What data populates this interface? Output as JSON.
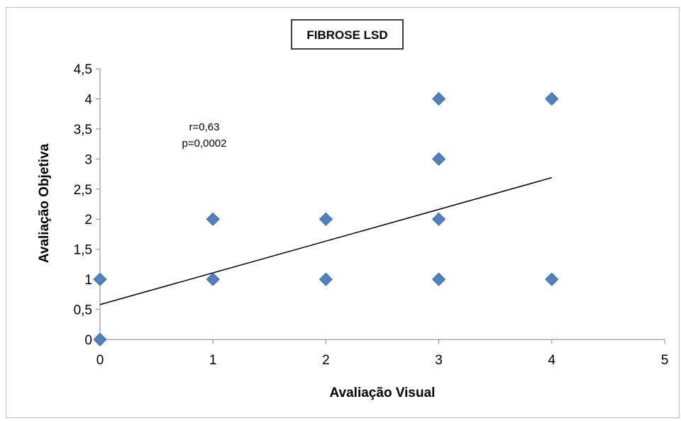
{
  "chart_data": {
    "type": "scatter",
    "title": "FIBROSE LSD",
    "xlabel": "Avaliação Visual",
    "ylabel": "Avaliação Objetiva",
    "xlim": [
      0,
      5
    ],
    "ylim": [
      0,
      4.5
    ],
    "x_ticks": [
      "0",
      "1",
      "2",
      "3",
      "4",
      "5"
    ],
    "y_ticks": [
      "0",
      "0,5",
      "1",
      "1,5",
      "2",
      "2,5",
      "3",
      "3,5",
      "4",
      "4,5"
    ],
    "x_tick_values": [
      0,
      1,
      2,
      3,
      4,
      5
    ],
    "y_tick_values": [
      0,
      0.5,
      1,
      1.5,
      2,
      2.5,
      3,
      3.5,
      4,
      4.5
    ],
    "grid": false,
    "marker_color": "#4f81bd",
    "points": [
      {
        "x": 0,
        "y": 0
      },
      {
        "x": 0,
        "y": 1
      },
      {
        "x": 1,
        "y": 1
      },
      {
        "x": 1,
        "y": 2
      },
      {
        "x": 2,
        "y": 1
      },
      {
        "x": 2,
        "y": 2
      },
      {
        "x": 3,
        "y": 1
      },
      {
        "x": 3,
        "y": 2
      },
      {
        "x": 3,
        "y": 3
      },
      {
        "x": 3,
        "y": 4
      },
      {
        "x": 4,
        "y": 1
      },
      {
        "x": 4,
        "y": 4
      }
    ],
    "trendline": {
      "x": [
        0,
        4
      ],
      "y": [
        0.58,
        2.69
      ]
    },
    "annotations": [
      "r=0,63",
      "p=0,0002"
    ]
  }
}
